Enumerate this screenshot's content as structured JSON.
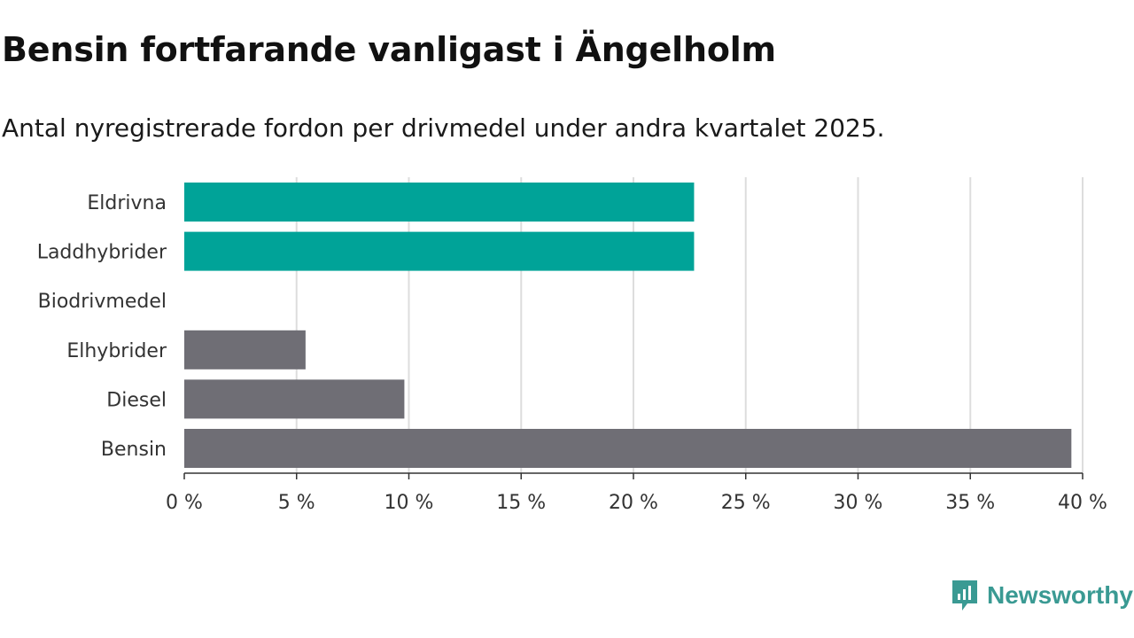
{
  "header": {
    "title": "Bensin fortfarande vanligast i Ängelholm",
    "subtitle": "Antal nyregistrerade fordon per drivmedel under andra kvartalet 2025."
  },
  "brand": {
    "name": "Newsworthy",
    "icon": "newsworthy-logo-icon",
    "color": "#3a9a93"
  },
  "chart_data": {
    "type": "bar",
    "orientation": "horizontal",
    "categories": [
      "Eldrivna",
      "Laddhybrider",
      "Biodrivmedel",
      "Elhybrider",
      "Diesel",
      "Bensin"
    ],
    "values": [
      22.7,
      22.7,
      0,
      5.4,
      9.8,
      39.5
    ],
    "colors": [
      "#00a398",
      "#00a398",
      "#00a398",
      "#6f6e75",
      "#6f6e75",
      "#6f6e75"
    ],
    "xlim": [
      0,
      40
    ],
    "xticks": [
      0,
      5,
      10,
      15,
      20,
      25,
      30,
      35,
      40
    ],
    "xtick_labels": [
      "0 %",
      "5 %",
      "10 %",
      "15 %",
      "20 %",
      "25 %",
      "30 %",
      "35 %",
      "40 %"
    ],
    "xlabel": "",
    "ylabel": "",
    "grid": true
  }
}
